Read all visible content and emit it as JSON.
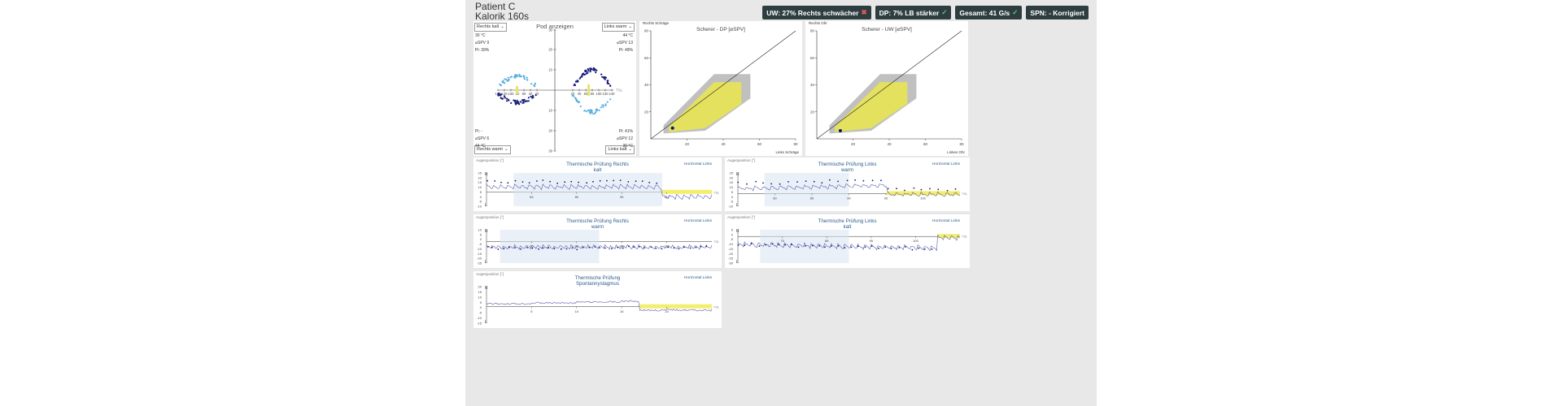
{
  "header": {
    "line1": "Patient C",
    "line2": "Kalorik 160s"
  },
  "badges": [
    {
      "text": "UW: 27% Rechts schwächer",
      "status": "bad",
      "mark": "✖"
    },
    {
      "text": "DP: 7% LB stärker",
      "status": "ok",
      "mark": "✓"
    },
    {
      "text": "Gesamt: 41  G/s",
      "status": "ok",
      "mark": "✓"
    },
    {
      "text": "SPN: -  Korrigiert",
      "status": "ok",
      "mark": ""
    }
  ],
  "pod": {
    "title": "Pod anzeigen",
    "sel_tl": "Rechts kalt",
    "sel_tr": "Links warm",
    "sel_bl": "Rechts warm",
    "sel_br": "Links kalt",
    "tl": [
      "30 °C",
      "⌀SPV 9",
      "Pi: 39%"
    ],
    "tr": [
      "44 °C",
      "⌀SPV 13",
      "Pi: 49%"
    ],
    "bl": [
      "Pi: -",
      "⌀SPV 6",
      "44 °C"
    ],
    "br": [
      "Pi: 41%",
      "⌀SPV 12",
      "30 °C"
    ],
    "xticks": [
      "140",
      "120",
      "100",
      "80",
      "60",
      "40",
      "20",
      "20",
      "40",
      "60",
      "80",
      "100",
      "120",
      "140"
    ],
    "yticks": [
      "30",
      "20",
      "10",
      "10",
      "20",
      "30"
    ],
    "tsl": "TSL"
  },
  "scherer1": {
    "title": "Scherer - DP [⌀SPV]",
    "ylab": "Rechts Schräge",
    "xlab": "Links Schräge",
    "ticks": [
      "20",
      "40",
      "60",
      "80"
    ],
    "point": [
      12,
      8
    ]
  },
  "scherer2": {
    "title": "Scherer - UW [⌀SPV]",
    "ylab": "Rechts Ohr",
    "xlab": "Linkes Ohr",
    "ticks": [
      "20",
      "40",
      "60",
      "80"
    ],
    "point": [
      13,
      6
    ]
  },
  "panels": [
    {
      "title": "Thermische Prüfung Rechts",
      "sub": "kalt",
      "link": "Horizontal Links",
      "agp": "Augenposition [°]",
      "yt": [
        "25",
        "20",
        "15",
        "10",
        "5",
        "0",
        "-5",
        "-10"
      ],
      "xt": [
        "65",
        "80",
        "95",
        "110"
      ]
    },
    {
      "title": "Thermische Prüfung Links",
      "sub": "warm",
      "link": "Horizontal Links",
      "agp": "Augenposition [°]",
      "yt": [
        "25",
        "20",
        "15",
        "10",
        "5",
        "0",
        "-5",
        "-10"
      ],
      "xt": [
        "80",
        "85",
        "90",
        "95",
        "100"
      ]
    },
    {
      "title": "Thermische Prüfung Rechts",
      "sub": "warm",
      "link": "Horizontal Links",
      "agp": "Augenposition [°]",
      "yt": [
        "10",
        "5",
        "0",
        "-5",
        "-10",
        "-15",
        "-20",
        "-25"
      ],
      "xt": [
        "65",
        "85",
        "100",
        "115"
      ]
    },
    {
      "title": "Thermische Prüfung Links",
      "sub": "kalt",
      "link": "Horizontal Links",
      "agp": "Augenposition [°]",
      "yt": [
        "5",
        "0",
        "-5",
        "-10",
        "-15",
        "-20",
        "-25",
        "-30"
      ],
      "xt": [
        "75",
        "85",
        "95",
        "105"
      ]
    },
    {
      "title": "Thermische Prüfung",
      "sub": "Spontannystagmus",
      "link": "Horizontal Links",
      "agp": "Augenposition [°]",
      "yt": [
        "20",
        "15",
        "10",
        "5",
        "0",
        "-5",
        "-10",
        "-15"
      ],
      "xt": [
        "5",
        "10",
        "15",
        "20"
      ]
    }
  ],
  "letters": {
    "r": "R",
    "l": "L",
    "tsl": "TSL"
  }
}
